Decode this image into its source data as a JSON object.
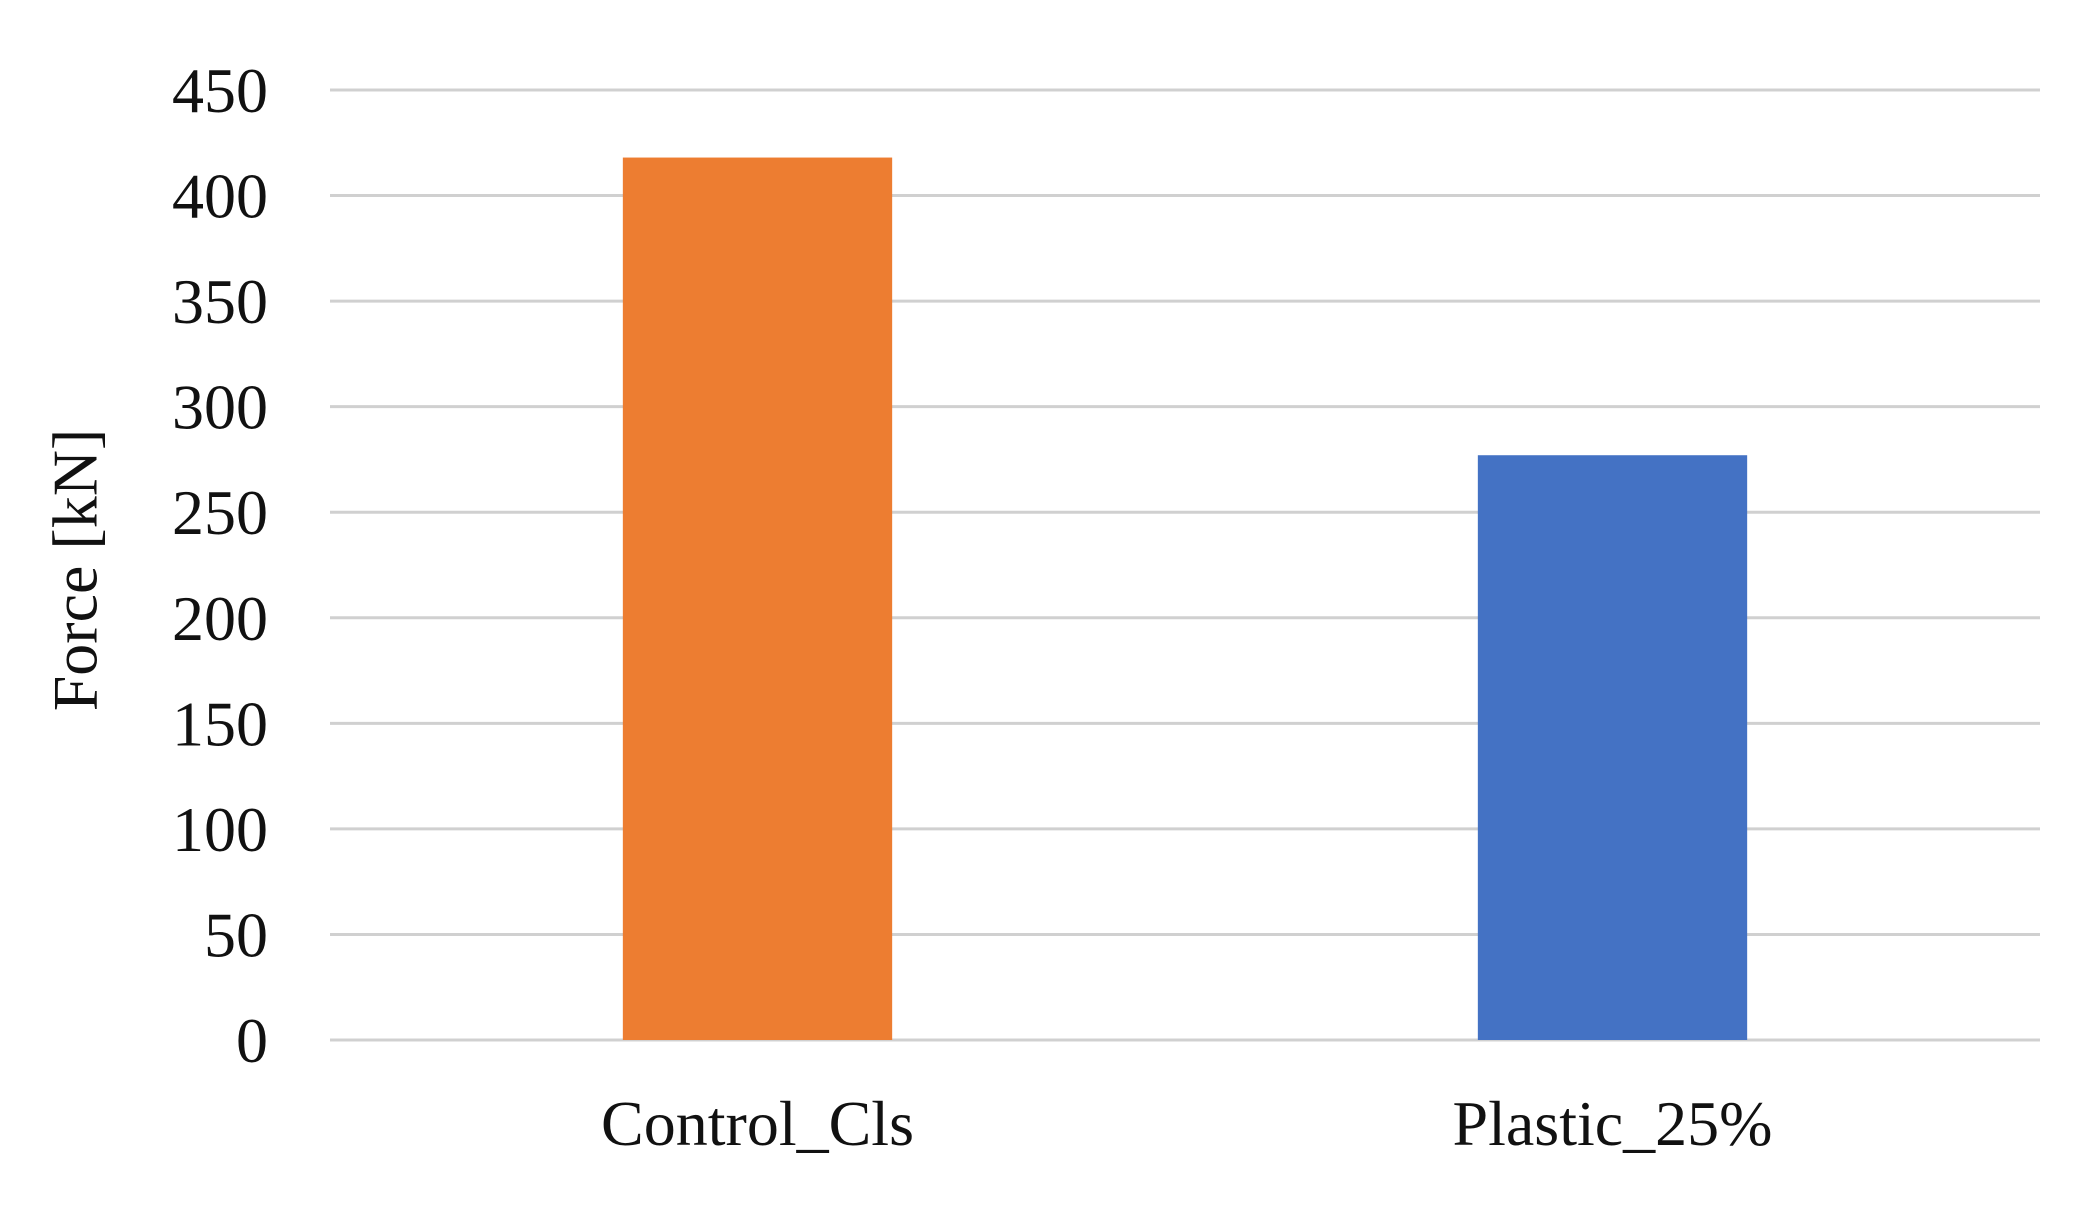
{
  "chart_data": {
    "type": "bar",
    "categories": [
      "Control_Cls",
      "Plastic_25%"
    ],
    "values": [
      418,
      277
    ],
    "title": "",
    "xlabel": "",
    "ylabel": "Force [kN]",
    "ylim": [
      0,
      450
    ],
    "yticks": [
      "0",
      "50",
      "100",
      "150",
      "200",
      "250",
      "300",
      "350",
      "400",
      "450"
    ],
    "grid": true,
    "legend": "none",
    "bar_colors": [
      "#ED7D31",
      "#4472C4"
    ]
  }
}
